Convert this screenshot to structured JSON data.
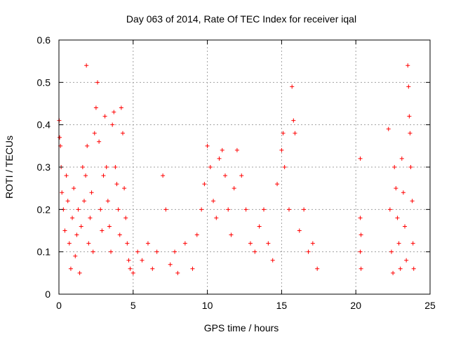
{
  "chart_data": {
    "type": "scatter",
    "title": "Day 063 of 2014, Rate Of TEC Index for receiver iqal",
    "xlabel": "GPS time / hours",
    "ylabel": "ROTI / TECUs",
    "xlim": [
      0,
      25
    ],
    "ylim": [
      0,
      0.6
    ],
    "xticks": [
      0,
      5,
      10,
      15,
      20,
      25
    ],
    "xtick_labels": [
      "0",
      "5",
      "10",
      "15",
      "20",
      "25"
    ],
    "yticks": [
      0,
      0.1,
      0.2,
      0.3,
      0.4,
      0.5,
      0.6
    ],
    "ytick_labels": [
      "0",
      "0.1",
      "0.2",
      "0.3",
      "0.4",
      "0.5",
      "0.6"
    ],
    "grid": true,
    "marker": "+",
    "color": "#ff0000",
    "series": [
      {
        "name": "ROTI",
        "points": [
          [
            0.02,
            0.41
          ],
          [
            0.05,
            0.37
          ],
          [
            0.1,
            0.35
          ],
          [
            0.15,
            0.3
          ],
          [
            0.2,
            0.24
          ],
          [
            0.3,
            0.2
          ],
          [
            0.4,
            0.15
          ],
          [
            0.5,
            0.28
          ],
          [
            0.6,
            0.22
          ],
          [
            0.7,
            0.12
          ],
          [
            0.8,
            0.06
          ],
          [
            0.9,
            0.18
          ],
          [
            1.0,
            0.25
          ],
          [
            1.1,
            0.09
          ],
          [
            1.2,
            0.14
          ],
          [
            1.3,
            0.2
          ],
          [
            1.4,
            0.05
          ],
          [
            1.5,
            0.16
          ],
          [
            1.6,
            0.3
          ],
          [
            1.7,
            0.22
          ],
          [
            1.8,
            0.28
          ],
          [
            1.85,
            0.54
          ],
          [
            1.9,
            0.35
          ],
          [
            2.0,
            0.12
          ],
          [
            2.1,
            0.18
          ],
          [
            2.2,
            0.24
          ],
          [
            2.3,
            0.1
          ],
          [
            2.4,
            0.38
          ],
          [
            2.5,
            0.44
          ],
          [
            2.6,
            0.5
          ],
          [
            2.7,
            0.36
          ],
          [
            2.8,
            0.2
          ],
          [
            2.9,
            0.15
          ],
          [
            3.0,
            0.28
          ],
          [
            3.1,
            0.42
          ],
          [
            3.2,
            0.3
          ],
          [
            3.3,
            0.22
          ],
          [
            3.4,
            0.16
          ],
          [
            3.5,
            0.1
          ],
          [
            3.6,
            0.4
          ],
          [
            3.7,
            0.43
          ],
          [
            3.8,
            0.3
          ],
          [
            3.9,
            0.26
          ],
          [
            4.0,
            0.2
          ],
          [
            4.1,
            0.14
          ],
          [
            4.2,
            0.44
          ],
          [
            4.3,
            0.38
          ],
          [
            4.4,
            0.25
          ],
          [
            4.5,
            0.18
          ],
          [
            4.6,
            0.12
          ],
          [
            4.7,
            0.08
          ],
          [
            4.8,
            0.06
          ],
          [
            5.0,
            0.05
          ],
          [
            5.3,
            0.1
          ],
          [
            5.6,
            0.08
          ],
          [
            6.0,
            0.12
          ],
          [
            6.3,
            0.06
          ],
          [
            6.6,
            0.1
          ],
          [
            7.0,
            0.28
          ],
          [
            7.2,
            0.2
          ],
          [
            7.5,
            0.07
          ],
          [
            7.8,
            0.1
          ],
          [
            8.0,
            0.05
          ],
          [
            8.5,
            0.12
          ],
          [
            9.0,
            0.06
          ],
          [
            9.3,
            0.14
          ],
          [
            9.6,
            0.2
          ],
          [
            9.8,
            0.26
          ],
          [
            10.0,
            0.35
          ],
          [
            10.2,
            0.3
          ],
          [
            10.4,
            0.22
          ],
          [
            10.6,
            0.18
          ],
          [
            10.8,
            0.32
          ],
          [
            11.0,
            0.34
          ],
          [
            11.2,
            0.28
          ],
          [
            11.4,
            0.2
          ],
          [
            11.6,
            0.14
          ],
          [
            11.8,
            0.25
          ],
          [
            12.0,
            0.34
          ],
          [
            12.3,
            0.28
          ],
          [
            12.6,
            0.2
          ],
          [
            12.9,
            0.12
          ],
          [
            13.2,
            0.1
          ],
          [
            13.5,
            0.16
          ],
          [
            13.8,
            0.2
          ],
          [
            14.1,
            0.12
          ],
          [
            14.4,
            0.08
          ],
          [
            14.7,
            0.26
          ],
          [
            15.0,
            0.34
          ],
          [
            15.1,
            0.38
          ],
          [
            15.2,
            0.3
          ],
          [
            15.5,
            0.2
          ],
          [
            15.7,
            0.49
          ],
          [
            15.8,
            0.41
          ],
          [
            15.9,
            0.38
          ],
          [
            16.2,
            0.15
          ],
          [
            16.5,
            0.2
          ],
          [
            16.8,
            0.1
          ],
          [
            17.1,
            0.12
          ],
          [
            17.4,
            0.06
          ],
          [
            20.3,
            0.32
          ],
          [
            20.3,
            0.18
          ],
          [
            20.35,
            0.14
          ],
          [
            20.3,
            0.1
          ],
          [
            20.35,
            0.06
          ],
          [
            22.2,
            0.39
          ],
          [
            22.3,
            0.2
          ],
          [
            22.4,
            0.1
          ],
          [
            22.5,
            0.05
          ],
          [
            22.6,
            0.3
          ],
          [
            22.7,
            0.25
          ],
          [
            22.8,
            0.18
          ],
          [
            22.9,
            0.12
          ],
          [
            23.0,
            0.06
          ],
          [
            23.1,
            0.32
          ],
          [
            23.2,
            0.24
          ],
          [
            23.3,
            0.16
          ],
          [
            23.4,
            0.08
          ],
          [
            23.5,
            0.54
          ],
          [
            23.55,
            0.49
          ],
          [
            23.6,
            0.42
          ],
          [
            23.65,
            0.38
          ],
          [
            23.7,
            0.3
          ],
          [
            23.8,
            0.22
          ],
          [
            23.85,
            0.12
          ],
          [
            23.9,
            0.06
          ]
        ]
      }
    ]
  }
}
